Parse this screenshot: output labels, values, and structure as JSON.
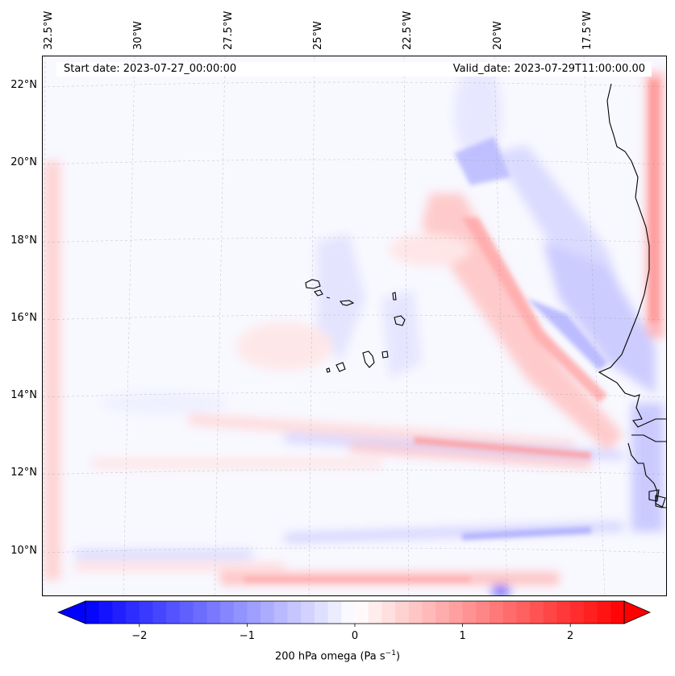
{
  "map": {
    "start_date": "Start date: 2023-07-27_00:00:00",
    "valid_date": "Valid_date: 2023-07-29T11:00:00.00",
    "lon_labels": [
      "32.5°W",
      "30°W",
      "27.5°W",
      "25°W",
      "22.5°W",
      "20°W",
      "17.5°W"
    ],
    "lat_labels": [
      "22°N",
      "20°N",
      "18°N",
      "16°N",
      "14°N",
      "12°N",
      "10°N"
    ],
    "land_color": "#f4f4ff",
    "coast_color": "#000000"
  },
  "colorbar": {
    "label": "200 hPa omega (Pa s",
    "label_sup": "−1",
    "label_end": ")",
    "ticks": [
      "−2",
      "−1",
      "0",
      "1",
      "2"
    ],
    "tick_values": [
      -2,
      -1,
      0,
      1,
      2
    ],
    "range": [
      -2.5,
      2.5
    ],
    "negative_color": "#0000ff",
    "positive_color": "#ff0000",
    "center_color": "#ffffff"
  }
}
